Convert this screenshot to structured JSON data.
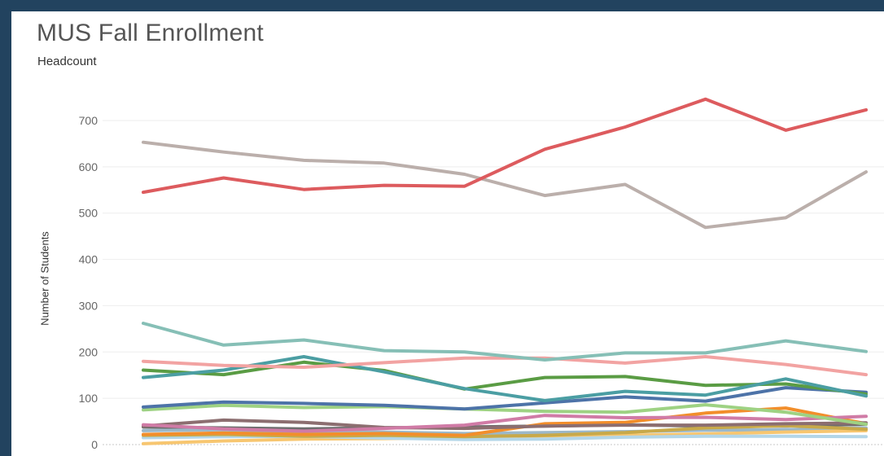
{
  "chart_data": {
    "type": "line",
    "title": "MUS Fall Enrollment",
    "subtitle": "Headcount",
    "xlabel": "",
    "ylabel": "Number of Students",
    "ylim": [
      0,
      780
    ],
    "yticks": [
      0,
      100,
      200,
      300,
      400,
      500,
      600,
      700
    ],
    "grid": true,
    "x": [
      1,
      2,
      3,
      4,
      5,
      6,
      7,
      8,
      9,
      10
    ],
    "series": [
      {
        "color": "#dd5b5e",
        "values": [
          545,
          576,
          551,
          560,
          558,
          638,
          686,
          746,
          679,
          723
        ]
      },
      {
        "color": "#bbafab",
        "values": [
          653,
          632,
          614,
          608,
          584,
          538,
          562,
          469,
          490,
          589
        ]
      },
      {
        "color": "#86bfb6",
        "values": [
          262,
          215,
          226,
          203,
          200,
          183,
          198,
          198,
          224,
          201
        ]
      },
      {
        "color": "#f2a3a2",
        "values": [
          180,
          171,
          167,
          177,
          187,
          187,
          176,
          190,
          173,
          151
        ]
      },
      {
        "color": "#4b9ea3",
        "values": [
          145,
          161,
          190,
          157,
          121,
          95,
          115,
          107,
          142,
          105
        ]
      },
      {
        "color": "#5a9c44",
        "values": [
          161,
          151,
          178,
          160,
          120,
          145,
          147,
          128,
          131,
          109
        ]
      },
      {
        "color": "#4d73a8",
        "values": [
          81,
          92,
          89,
          85,
          77,
          90,
          103,
          94,
          123,
          113
        ]
      },
      {
        "color": "#9ed283",
        "values": [
          75,
          85,
          80,
          82,
          77,
          72,
          70,
          86,
          70,
          44
        ]
      },
      {
        "color": "#d07ba6",
        "values": [
          43,
          34,
          29,
          35,
          42,
          63,
          58,
          59,
          54,
          61
        ]
      },
      {
        "color": "#8c6e70",
        "values": [
          40,
          53,
          48,
          37,
          35,
          40,
          42,
          42,
          45,
          47
        ]
      },
      {
        "color": "#f28e2b",
        "values": [
          22,
          25,
          22,
          24,
          20,
          45,
          48,
          68,
          79,
          45
        ]
      },
      {
        "color": "#c8a94a",
        "values": [
          20,
          22,
          18,
          20,
          17,
          20,
          26,
          36,
          41,
          33
        ]
      },
      {
        "color": "#b3d6e8",
        "values": [
          15,
          17,
          18,
          14,
          11,
          12,
          16,
          18,
          18,
          17
        ]
      },
      {
        "color": "#f7c670",
        "values": [
          2,
          8,
          12,
          13,
          15,
          19,
          20,
          23,
          27,
          30
        ]
      },
      {
        "color": "#9cb8c9",
        "values": [
          30,
          32,
          27,
          27,
          24,
          26,
          28,
          31,
          32,
          36
        ]
      },
      {
        "color": "#6d6d6d",
        "values": [
          38,
          36,
          34,
          36,
          38,
          40,
          43,
          40,
          40,
          44
        ]
      }
    ]
  }
}
